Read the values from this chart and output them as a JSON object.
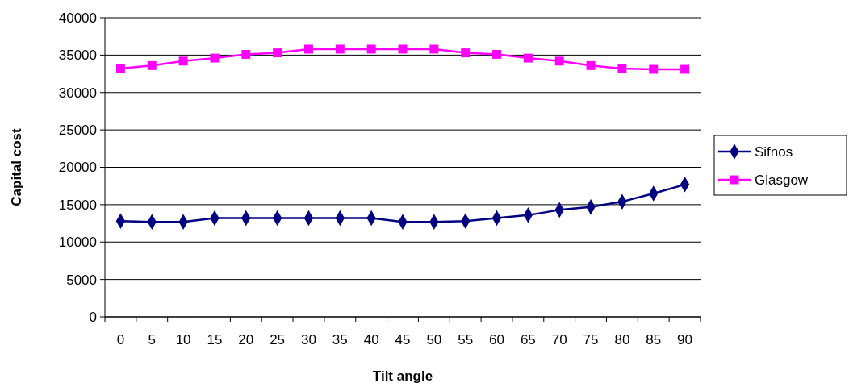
{
  "chart_data": {
    "type": "line",
    "xlabel": "Tilt angle",
    "ylabel": "Capital cost",
    "categories": [
      "0",
      "5",
      "10",
      "15",
      "20",
      "25",
      "30",
      "35",
      "40",
      "45",
      "50",
      "55",
      "60",
      "65",
      "70",
      "75",
      "80",
      "85",
      "90"
    ],
    "ylim": [
      0,
      40000
    ],
    "yticks": [
      0,
      5000,
      10000,
      15000,
      20000,
      25000,
      30000,
      35000,
      40000
    ],
    "grid": "y",
    "legend": "right",
    "series": [
      {
        "name": "Sifnos",
        "color": "#000080",
        "marker": "diamond",
        "values": [
          12800,
          12700,
          12700,
          13200,
          13200,
          13200,
          13200,
          13200,
          13200,
          12700,
          12700,
          12800,
          13200,
          13600,
          14300,
          14700,
          15400,
          16500,
          17700
        ]
      },
      {
        "name": "Glasgow",
        "color": "#ff00ff",
        "marker": "square",
        "values": [
          33200,
          33600,
          34200,
          34600,
          35100,
          35300,
          35800,
          35800,
          35800,
          35800,
          35800,
          35300,
          35100,
          34600,
          34200,
          33600,
          33200,
          33100,
          33100
        ]
      }
    ]
  }
}
